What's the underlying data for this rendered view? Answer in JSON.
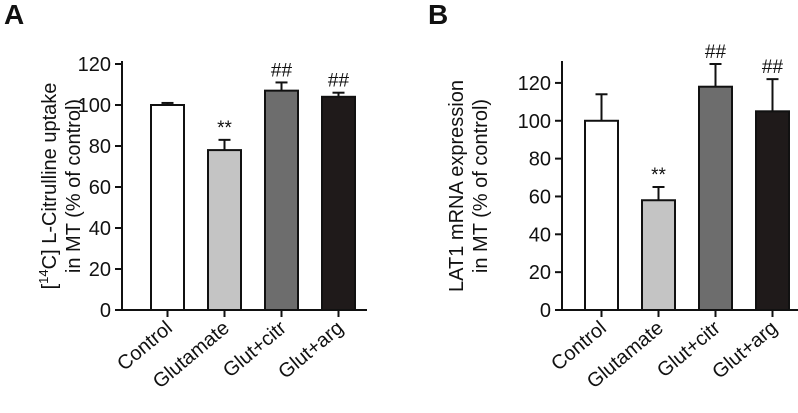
{
  "chart_data": [
    {
      "panel": "A",
      "type": "bar",
      "title": "",
      "ylabel_prefix": "[",
      "ylabel_superscript": "14",
      "ylabel_line1": "C] L-Citrulline uptake",
      "ylabel_line2": "in MT (% of control)",
      "xlabel": "",
      "ylim": [
        0,
        120
      ],
      "yticks": [
        0,
        20,
        40,
        60,
        80,
        100,
        120
      ],
      "categories": [
        "Control",
        "Glutamate",
        "Glut+citr",
        "Glut+arg"
      ],
      "values": [
        100,
        78,
        107,
        104
      ],
      "errors": [
        1,
        5,
        4,
        2
      ],
      "colors": [
        "#ffffff",
        "#c4c4c4",
        "#6d6d6d",
        "#1f1a1a"
      ],
      "annotations": [
        "",
        "**",
        "##",
        "##"
      ]
    },
    {
      "panel": "B",
      "type": "bar",
      "title": "",
      "ylabel_line1": "LAT1 mRNA expression",
      "ylabel_line2": "in MT (% of control)",
      "xlabel": "",
      "ylim": [
        0,
        130
      ],
      "yticks": [
        0,
        20,
        40,
        60,
        80,
        100,
        120
      ],
      "categories": [
        "Control",
        "Glutamate",
        "Glut+citr",
        "Glut+arg"
      ],
      "values": [
        100,
        58,
        118,
        105
      ],
      "errors": [
        14,
        7,
        12,
        17
      ],
      "colors": [
        "#ffffff",
        "#c4c4c4",
        "#6d6d6d",
        "#1f1a1a"
      ],
      "annotations": [
        "",
        "**",
        "##",
        "##"
      ]
    }
  ]
}
